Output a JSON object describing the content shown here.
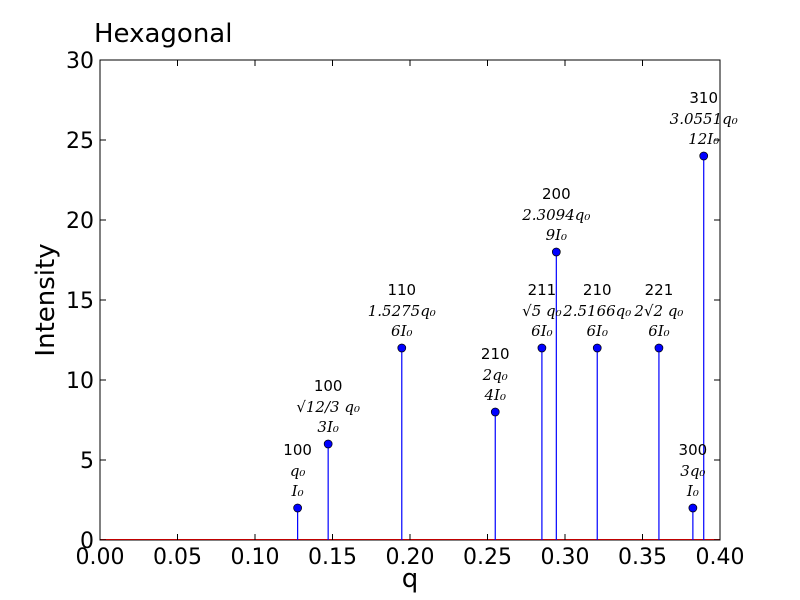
{
  "chart_data": {
    "type": "stem",
    "title": "Hexagonal",
    "xlabel": "q",
    "ylabel": "Intensity",
    "xlim": [
      0.0,
      0.4
    ],
    "ylim": [
      0,
      30
    ],
    "x_ticks": [
      "0.00",
      "0.05",
      "0.10",
      "0.15",
      "0.20",
      "0.25",
      "0.30",
      "0.35",
      "0.40"
    ],
    "y_ticks": [
      "0",
      "5",
      "10",
      "15",
      "20",
      "25",
      "30"
    ],
    "grid": false,
    "series_color": "#0000ff",
    "baseline_color": "#c00000",
    "peaks": [
      {
        "x": 0.1275,
        "y": 2,
        "hkl": "100",
        "pos": "q₀",
        "mult": "I₀"
      },
      {
        "x": 0.1472,
        "y": 6,
        "hkl": "100",
        "pos": "√12/3 q₀",
        "mult": "3I₀"
      },
      {
        "x": 0.1947,
        "y": 12,
        "hkl": "110",
        "pos": "1.5275q₀",
        "mult": "6I₀"
      },
      {
        "x": 0.255,
        "y": 8,
        "hkl": "210",
        "pos": "2q₀",
        "mult": "4I₀"
      },
      {
        "x": 0.2851,
        "y": 12,
        "hkl": "211",
        "pos": "√5 q₀",
        "mult": "6I₀"
      },
      {
        "x": 0.2944,
        "y": 18,
        "hkl": "200",
        "pos": "2.3094q₀",
        "mult": "9I₀"
      },
      {
        "x": 0.3208,
        "y": 12,
        "hkl": "210",
        "pos": "2.5166q₀",
        "mult": "6I₀"
      },
      {
        "x": 0.3606,
        "y": 12,
        "hkl": "221",
        "pos": "2√2 q₀",
        "mult": "6I₀"
      },
      {
        "x": 0.3825,
        "y": 2,
        "hkl": "300",
        "pos": "3q₀",
        "mult": "I₀"
      },
      {
        "x": 0.3895,
        "y": 24,
        "hkl": "310",
        "pos": "3.0551q₀",
        "mult": "12I₀"
      }
    ]
  }
}
